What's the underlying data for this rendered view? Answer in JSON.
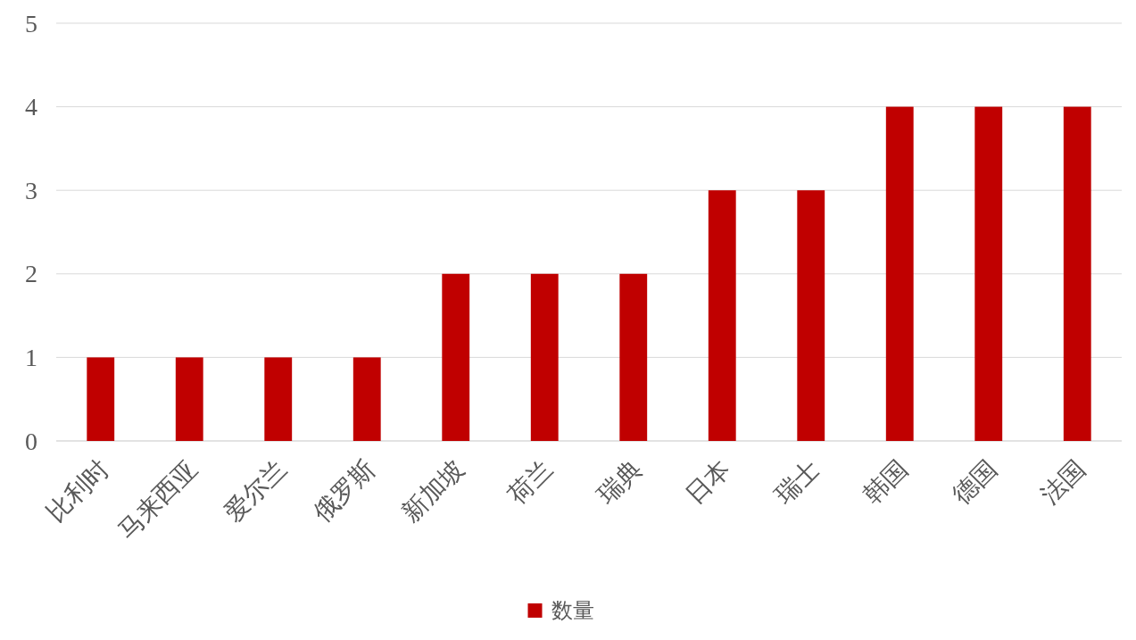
{
  "chart_data": {
    "type": "bar",
    "categories": [
      "比利时",
      "马来西亚",
      "爱尔兰",
      "俄罗斯",
      "新加坡",
      "荷兰",
      "瑞典",
      "日本",
      "瑞士",
      "韩国",
      "德国",
      "法国"
    ],
    "series": [
      {
        "name": "数量",
        "color": "#c00000",
        "values": [
          1,
          1,
          1,
          1,
          2,
          2,
          2,
          3,
          3,
          4,
          4,
          4
        ]
      }
    ],
    "ylim": [
      0,
      5
    ],
    "yticks": [
      0,
      1,
      2,
      3,
      4,
      5
    ],
    "grid": "y",
    "legend": "bottom"
  }
}
